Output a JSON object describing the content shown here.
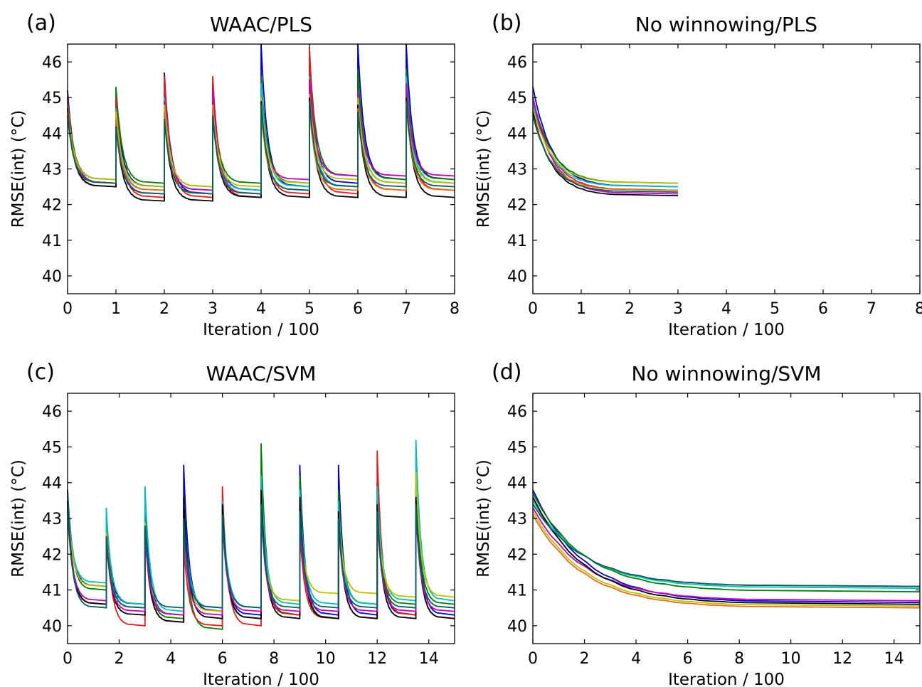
{
  "palette": {
    "blue": "#0000cc",
    "green": "#007f00",
    "red": "#e41a1c",
    "cyan": "#00bfbf",
    "magenta": "#bf00bf",
    "yellow": "#bfbf00",
    "black": "#000000",
    "teal": "#006060",
    "orange": "#e07020"
  },
  "chart_data": [
    {
      "panel": "(a)",
      "type": "line",
      "title": "WAAC/PLS",
      "xlabel": "Iteration / 100",
      "ylabel": "RMSE(int) (°C)",
      "xlim": [
        0,
        8
      ],
      "ylim": [
        39.5,
        46.5
      ],
      "xticks": [
        "0",
        "1",
        "2",
        "3",
        "4",
        "5",
        "6",
        "7",
        "8"
      ],
      "yticks": [
        "40",
        "41",
        "42",
        "43",
        "44",
        "45",
        "46"
      ],
      "grid": false,
      "legend": "none",
      "cycle_period": 1,
      "cycles_x_end": 8,
      "series": [
        {
          "color": "blue",
          "start": 45.2,
          "peaks": [
            45.2,
            45.0,
            45.7,
            45.4,
            46.5,
            46.0,
            46.5,
            46.5
          ],
          "plateaus": [
            42.6,
            42.5,
            42.3,
            42.4,
            42.5,
            42.6,
            42.7,
            42.7
          ]
        },
        {
          "color": "green",
          "start": 45.0,
          "peaks": [
            45.0,
            45.3,
            44.8,
            45.0,
            45.6,
            46.3,
            45.8,
            45.8
          ],
          "plateaus": [
            42.7,
            42.6,
            42.5,
            42.6,
            42.6,
            42.8,
            42.7,
            42.7
          ]
        },
        {
          "color": "red",
          "start": 45.0,
          "peaks": [
            45.0,
            45.0,
            45.6,
            45.6,
            45.2,
            46.4,
            45.1,
            45.5
          ],
          "plateaus": [
            42.5,
            42.2,
            42.2,
            42.2,
            42.3,
            42.3,
            42.4,
            42.4
          ]
        },
        {
          "color": "cyan",
          "start": 44.8,
          "peaks": [
            44.8,
            44.7,
            45.0,
            45.0,
            45.4,
            45.6,
            45.2,
            45.6
          ],
          "plateaus": [
            42.6,
            42.4,
            42.4,
            42.4,
            42.5,
            42.5,
            42.6,
            42.6
          ]
        },
        {
          "color": "magenta",
          "start": 44.9,
          "peaks": [
            44.9,
            44.5,
            44.9,
            45.2,
            44.8,
            45.5,
            45.2,
            45.4
          ],
          "plateaus": [
            42.6,
            42.3,
            42.4,
            42.3,
            42.7,
            42.8,
            42.8,
            42.8
          ]
        },
        {
          "color": "yellow",
          "start": 44.8,
          "peaks": [
            44.8,
            44.6,
            44.8,
            44.8,
            45.0,
            45.1,
            45.0,
            45.0
          ],
          "plateaus": [
            42.7,
            42.5,
            42.5,
            42.5,
            42.6,
            42.7,
            42.6,
            42.6
          ]
        },
        {
          "color": "black",
          "start": 44.7,
          "peaks": [
            44.7,
            44.3,
            44.5,
            44.6,
            44.9,
            45.0,
            44.8,
            45.0
          ],
          "plateaus": [
            42.5,
            42.1,
            42.1,
            42.2,
            42.2,
            42.2,
            42.2,
            42.2
          ]
        },
        {
          "color": "orange",
          "start": 44.6,
          "peaks": [
            44.6,
            44.4,
            44.6,
            44.7,
            44.6,
            44.7,
            44.7,
            44.8
          ],
          "plateaus": [
            42.6,
            42.4,
            42.3,
            42.3,
            42.4,
            42.4,
            42.4,
            42.4
          ]
        },
        {
          "color": "teal",
          "start": 44.5,
          "peaks": [
            44.5,
            44.2,
            44.4,
            44.5,
            44.8,
            44.9,
            44.6,
            44.9
          ],
          "plateaus": [
            42.6,
            42.3,
            42.3,
            42.3,
            42.4,
            42.5,
            42.5,
            42.5
          ]
        }
      ]
    },
    {
      "panel": "(b)",
      "type": "line",
      "title": "No winnowing/PLS",
      "xlabel": "Iteration / 100",
      "ylabel": "RMSE(int) (°C)",
      "xlim": [
        0,
        8
      ],
      "ylim": [
        39.5,
        46.5
      ],
      "xticks": [
        "0",
        "1",
        "2",
        "3",
        "4",
        "5",
        "6",
        "7",
        "8"
      ],
      "yticks": [
        "40",
        "41",
        "42",
        "43",
        "44",
        "45",
        "46"
      ],
      "grid": false,
      "legend": "none",
      "cycle_period": 3,
      "cycles_x_end": 3,
      "series": [
        {
          "color": "blue",
          "start": 45.3,
          "peaks": [
            45.3
          ],
          "plateaus": [
            42.5
          ]
        },
        {
          "color": "green",
          "start": 45.0,
          "peaks": [
            45.0
          ],
          "plateaus": [
            42.6
          ]
        },
        {
          "color": "red",
          "start": 45.0,
          "peaks": [
            45.0
          ],
          "plateaus": [
            42.4
          ]
        },
        {
          "color": "cyan",
          "start": 44.8,
          "peaks": [
            44.8
          ],
          "plateaus": [
            42.5
          ]
        },
        {
          "color": "magenta",
          "start": 45.0,
          "peaks": [
            45.0
          ],
          "plateaus": [
            42.3
          ]
        },
        {
          "color": "yellow",
          "start": 44.7,
          "peaks": [
            44.7
          ],
          "plateaus": [
            42.6
          ]
        },
        {
          "color": "black",
          "start": 44.6,
          "peaks": [
            44.6
          ],
          "plateaus": [
            42.25
          ]
        },
        {
          "color": "orange",
          "start": 44.5,
          "peaks": [
            44.5
          ],
          "plateaus": [
            42.4
          ]
        },
        {
          "color": "teal",
          "start": 44.5,
          "peaks": [
            44.5
          ],
          "plateaus": [
            42.35
          ]
        }
      ]
    },
    {
      "panel": "(c)",
      "type": "line",
      "title": "WAAC/SVM",
      "xlabel": "Iteration / 100",
      "ylabel": "RMSE(int) (°C)",
      "xlim": [
        0,
        15
      ],
      "ylim": [
        39.5,
        46.5
      ],
      "xticks": [
        "0",
        "2",
        "4",
        "6",
        "8",
        "10",
        "12",
        "14"
      ],
      "xtick_values": [
        0,
        2,
        4,
        6,
        8,
        10,
        12,
        14
      ],
      "yticks": [
        "40",
        "41",
        "42",
        "43",
        "44",
        "45",
        "46"
      ],
      "grid": false,
      "legend": "none",
      "cycle_period": 1.5,
      "cycles_x_end": 15,
      "series": [
        {
          "color": "blue",
          "start": 43.8,
          "peaks": [
            43.8,
            42.8,
            43.3,
            44.5,
            43.5,
            44.0,
            44.5,
            44.5,
            44.0,
            44.3
          ],
          "plateaus": [
            41.1,
            40.6,
            40.3,
            40.4,
            40.3,
            40.3,
            40.3,
            40.3,
            40.3,
            40.3
          ]
        },
        {
          "color": "green",
          "start": 43.7,
          "peaks": [
            43.7,
            42.7,
            43.0,
            43.3,
            43.2,
            45.1,
            44.2,
            43.8,
            43.5,
            44.0
          ],
          "plateaus": [
            41.0,
            40.5,
            40.2,
            39.9,
            40.2,
            40.3,
            40.2,
            40.6,
            40.6,
            40.6
          ]
        },
        {
          "color": "red",
          "start": 43.2,
          "peaks": [
            43.2,
            43.0,
            42.8,
            42.3,
            43.9,
            43.8,
            42.7,
            43.2,
            44.9,
            43.5
          ],
          "plateaus": [
            40.6,
            40.0,
            40.1,
            40.0,
            40.0,
            40.3,
            40.2,
            40.2,
            40.3,
            40.2
          ]
        },
        {
          "color": "cyan",
          "start": 43.6,
          "peaks": [
            43.6,
            43.3,
            43.9,
            43.6,
            43.5,
            44.2,
            43.8,
            43.5,
            43.9,
            45.2
          ],
          "plateaus": [
            41.2,
            40.6,
            40.4,
            40.5,
            40.5,
            40.6,
            40.6,
            40.6,
            40.7,
            40.7
          ]
        },
        {
          "color": "yellow",
          "start": 43.4,
          "peaks": [
            43.4,
            42.6,
            42.9,
            43.1,
            43.0,
            43.2,
            43.0,
            43.1,
            43.3,
            44.3
          ],
          "plateaus": [
            41.1,
            40.5,
            40.3,
            40.4,
            40.5,
            40.7,
            40.9,
            40.9,
            40.8,
            40.8
          ]
        },
        {
          "color": "black",
          "start": 43.5,
          "peaks": [
            43.5,
            42.5,
            42.7,
            43.6,
            43.4,
            43.8,
            43.6,
            43.2,
            43.4,
            43.6
          ],
          "plateaus": [
            40.6,
            40.3,
            40.1,
            40.2,
            40.2,
            40.2,
            40.2,
            40.2,
            40.2,
            40.2
          ]
        },
        {
          "color": "magenta",
          "start": 43.3,
          "peaks": [
            43.3,
            42.4,
            42.6,
            42.8,
            42.9,
            43.2,
            43.0,
            42.9,
            43.1,
            43.2
          ],
          "plateaus": [
            40.7,
            40.4,
            40.3,
            40.3,
            40.4,
            40.4,
            40.4,
            40.4,
            40.4,
            40.4
          ]
        },
        {
          "color": "teal",
          "start": 43.4,
          "peaks": [
            43.4,
            42.5,
            42.8,
            43.0,
            43.1,
            43.4,
            43.2,
            43.0,
            43.2,
            43.4
          ],
          "plateaus": [
            40.5,
            40.5,
            40.5,
            40.5,
            40.5,
            40.5,
            40.5,
            40.5,
            40.5,
            40.5
          ]
        }
      ]
    },
    {
      "panel": "(d)",
      "type": "line",
      "title": "No winnowing/SVM",
      "xlabel": "Iteration / 100",
      "ylabel": "RMSE(int) (°C)",
      "xlim": [
        0,
        15
      ],
      "ylim": [
        39.5,
        46.5
      ],
      "xticks": [
        "0",
        "2",
        "4",
        "6",
        "8",
        "10",
        "12",
        "14"
      ],
      "xtick_values": [
        0,
        2,
        4,
        6,
        8,
        10,
        12,
        14
      ],
      "yticks": [
        "40",
        "41",
        "42",
        "43",
        "44",
        "45",
        "46"
      ],
      "grid": false,
      "legend": "none",
      "cycle_period": 15,
      "cycles_x_end": 15,
      "series": [
        {
          "color": "blue",
          "start": 43.8,
          "peaks": [
            43.8
          ],
          "plateaus": [
            40.65
          ]
        },
        {
          "color": "green",
          "start": 43.7,
          "peaks": [
            43.7
          ],
          "plateaus": [
            40.95
          ]
        },
        {
          "color": "red",
          "start": 43.4,
          "peaks": [
            43.4
          ],
          "plateaus": [
            41.1
          ]
        },
        {
          "color": "cyan",
          "start": 43.5,
          "peaks": [
            43.5
          ],
          "plateaus": [
            41.05
          ]
        },
        {
          "color": "magenta",
          "start": 43.3,
          "peaks": [
            43.3
          ],
          "plateaus": [
            40.7
          ]
        },
        {
          "color": "yellow",
          "start": 43.2,
          "peaks": [
            43.2
          ],
          "plateaus": [
            40.55
          ]
        },
        {
          "color": "black",
          "start": 43.6,
          "peaks": [
            43.6
          ],
          "plateaus": [
            40.6
          ]
        },
        {
          "color": "orange",
          "start": 43.1,
          "peaks": [
            43.1
          ],
          "plateaus": [
            40.5
          ]
        },
        {
          "color": "teal",
          "start": 43.4,
          "peaks": [
            43.4
          ],
          "plateaus": [
            41.1
          ]
        }
      ]
    }
  ]
}
